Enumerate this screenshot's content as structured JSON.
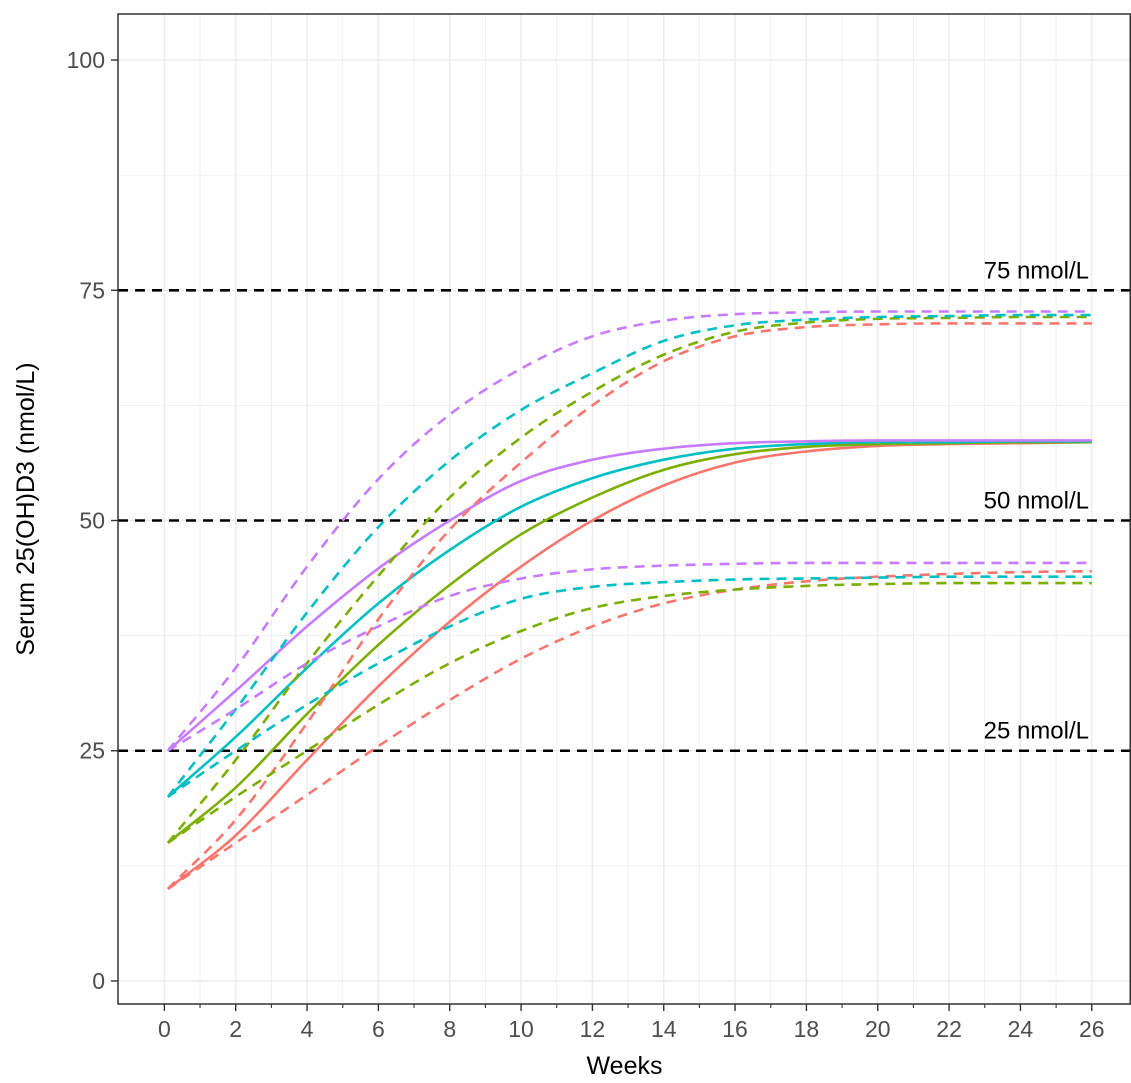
{
  "chart_data": {
    "type": "line",
    "title": "",
    "xlabel": "Weeks",
    "ylabel": "Serum 25(OH)D3 (nmol/L)",
    "xlim": [
      -1.3,
      27.1
    ],
    "ylim": [
      -2.5,
      105
    ],
    "x_ticks": [
      0,
      2,
      4,
      6,
      8,
      10,
      12,
      14,
      16,
      18,
      20,
      22,
      24,
      26
    ],
    "x_tick_labels": [
      "0",
      "2",
      "4",
      "6",
      "8",
      "10",
      "12",
      "14",
      "16",
      "18",
      "20",
      "22",
      "24",
      "26"
    ],
    "y_ticks": [
      0,
      25,
      50,
      75,
      100
    ],
    "y_tick_labels": [
      "0",
      "25",
      "50",
      "75",
      "100"
    ],
    "grid": true,
    "legend": "none",
    "reference_lines": [
      {
        "y": 25,
        "label": "25 nmol/L",
        "style": "dashed",
        "color": "#000000"
      },
      {
        "y": 50,
        "label": "50 nmol/L",
        "style": "dashed",
        "color": "#000000"
      },
      {
        "y": 75,
        "label": "75 nmol/L",
        "style": "dashed",
        "color": "#000000"
      }
    ],
    "series": [
      {
        "color": "#F8766D",
        "style": "solid",
        "x": [
          0.1,
          2,
          4,
          6,
          8,
          10,
          12,
          14,
          16,
          18,
          20,
          22,
          24,
          26
        ],
        "y": [
          10,
          15.8,
          24,
          32,
          39,
          45,
          50,
          53.8,
          56.3,
          57.5,
          58.1,
          58.3,
          58.4,
          58.5
        ]
      },
      {
        "color": "#7CAE00",
        "style": "solid",
        "x": [
          0.1,
          2,
          4,
          6,
          8,
          10,
          12,
          14,
          16,
          18,
          20,
          22,
          24,
          26
        ],
        "y": [
          15,
          21,
          29,
          36.5,
          43,
          48.5,
          52.5,
          55.5,
          57.2,
          58,
          58.3,
          58.4,
          58.5,
          58.5
        ]
      },
      {
        "color": "#00BFC4",
        "style": "solid",
        "x": [
          0.1,
          2,
          4,
          6,
          8,
          10,
          12,
          14,
          16,
          18,
          20,
          22,
          24,
          26
        ],
        "y": [
          20,
          26.5,
          34,
          41,
          46.8,
          51.5,
          54.6,
          56.6,
          57.8,
          58.3,
          58.5,
          58.5,
          58.6,
          58.6
        ]
      },
      {
        "color": "#C77CFF",
        "style": "solid",
        "x": [
          0.1,
          2,
          4,
          6,
          8,
          10,
          12,
          14,
          16,
          18,
          20,
          22,
          24,
          26
        ],
        "y": [
          25,
          31.5,
          38.5,
          44.8,
          50,
          54.3,
          56.6,
          57.8,
          58.4,
          58.6,
          58.7,
          58.7,
          58.7,
          58.7
        ]
      },
      {
        "color": "#F8766D",
        "style": "dashed",
        "x": [
          0.1,
          2,
          4,
          6,
          8,
          10,
          12,
          14,
          16,
          18,
          20,
          22,
          24,
          26
        ],
        "y": [
          10,
          17.5,
          28,
          39.3,
          49,
          56.3,
          62.5,
          67.3,
          70,
          71,
          71.3,
          71.4,
          71.4,
          71.4
        ]
      },
      {
        "color": "#7CAE00",
        "style": "dashed",
        "x": [
          0.1,
          2,
          4,
          6,
          8,
          10,
          12,
          14,
          16,
          18,
          20,
          22,
          24,
          26
        ],
        "y": [
          15,
          24,
          34.5,
          44,
          52.5,
          59,
          64,
          68,
          70.5,
          71.5,
          71.9,
          72,
          72.1,
          72.1
        ]
      },
      {
        "color": "#00BFC4",
        "style": "dashed",
        "x": [
          0.1,
          2,
          4,
          6,
          8,
          10,
          12,
          14,
          16,
          18,
          20,
          22,
          24,
          26
        ],
        "y": [
          20,
          29.5,
          40,
          49.3,
          56.5,
          62,
          66,
          69.5,
          71.2,
          71.8,
          72.1,
          72.2,
          72.3,
          72.3
        ]
      },
      {
        "color": "#C77CFF",
        "style": "dashed",
        "x": [
          0.1,
          2,
          4,
          6,
          8,
          10,
          12,
          14,
          16,
          18,
          20,
          22,
          24,
          26
        ],
        "y": [
          25,
          34,
          45,
          54.5,
          61.5,
          66.5,
          70,
          71.7,
          72.4,
          72.6,
          72.7,
          72.7,
          72.7,
          72.7
        ]
      },
      {
        "color": "#F8766D",
        "style": "dashed",
        "x": [
          0.1,
          2,
          4,
          6,
          8,
          10,
          12,
          14,
          16,
          18,
          20,
          22,
          24,
          26
        ],
        "y": [
          10,
          15,
          20.2,
          25.5,
          30.5,
          35,
          38.5,
          41,
          42.5,
          43.4,
          43.9,
          44.2,
          44.4,
          44.5
        ]
      },
      {
        "color": "#7CAE00",
        "style": "dashed",
        "x": [
          0.1,
          2,
          4,
          6,
          8,
          10,
          12,
          14,
          16,
          18,
          20,
          22,
          24,
          26
        ],
        "y": [
          15,
          20,
          25,
          30,
          34.5,
          38,
          40.5,
          41.8,
          42.5,
          42.9,
          43.1,
          43.2,
          43.2,
          43.2
        ]
      },
      {
        "color": "#00BFC4",
        "style": "dashed",
        "x": [
          0.1,
          2,
          4,
          6,
          8,
          10,
          12,
          14,
          16,
          18,
          20,
          22,
          24,
          26
        ],
        "y": [
          20,
          25,
          30,
          34.5,
          38.5,
          41.5,
          42.8,
          43.3,
          43.6,
          43.7,
          43.8,
          43.9,
          43.9,
          43.9
        ]
      },
      {
        "color": "#C77CFF",
        "style": "dashed",
        "x": [
          0.1,
          2,
          4,
          6,
          8,
          10,
          12,
          14,
          16,
          18,
          20,
          22,
          24,
          26
        ],
        "y": [
          25,
          29.5,
          34.5,
          38.5,
          41.8,
          43.7,
          44.7,
          45.1,
          45.3,
          45.4,
          45.4,
          45.4,
          45.4,
          45.4
        ]
      }
    ]
  }
}
